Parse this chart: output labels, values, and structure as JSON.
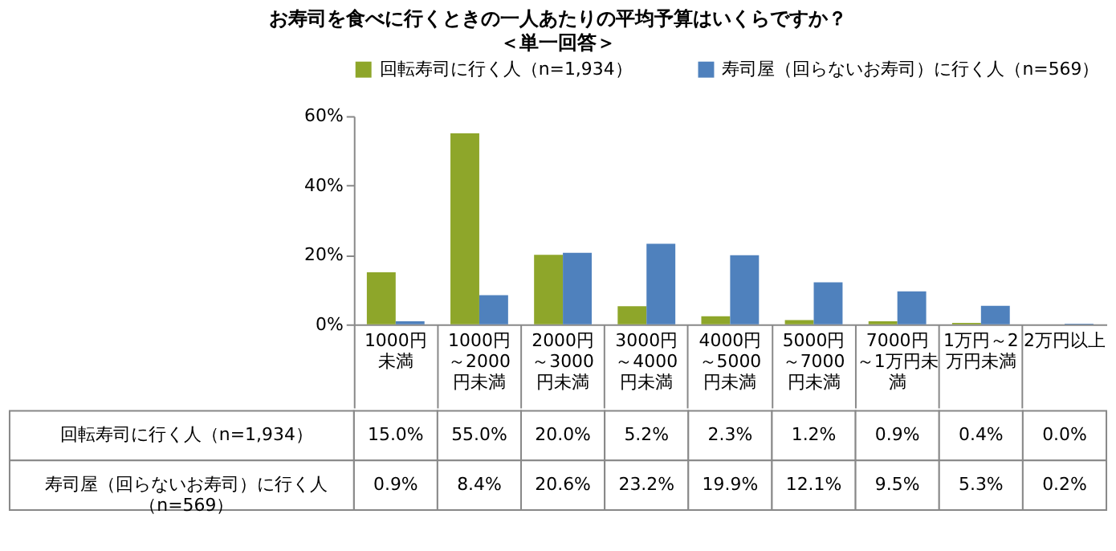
{
  "chart_data": {
    "type": "bar",
    "title": "お寿司を食べに行くときの一人あたりの平均予算はいくらですか？",
    "subtitle": "＜単一回答＞",
    "categories": [
      "1000円未満",
      "1000円～2000円未満",
      "2000円～3000円未満",
      "3000円～4000円未満",
      "4000円～5000円未満",
      "5000円～7000円未満",
      "7000円～1万円未満",
      "1万円～2万円未満",
      "2万円以上"
    ],
    "series": [
      {
        "name": "回転寿司に行く人（n=1,934）",
        "color": "#8ea62a",
        "values": [
          15.0,
          55.0,
          20.0,
          5.2,
          2.3,
          1.2,
          0.9,
          0.4,
          0.0
        ],
        "value_labels": [
          "15.0%",
          "55.0%",
          "20.0%",
          "5.2%",
          "2.3%",
          "1.2%",
          "0.9%",
          "0.4%",
          "0.0%"
        ]
      },
      {
        "name": "寿司屋（回らないお寿司）に行く人（n=569）",
        "color": "#4f81bd",
        "values": [
          0.9,
          8.4,
          20.6,
          23.2,
          19.9,
          12.1,
          9.5,
          5.3,
          0.2
        ],
        "value_labels": [
          "0.9%",
          "8.4%",
          "20.6%",
          "23.2%",
          "19.9%",
          "12.1%",
          "9.5%",
          "5.3%",
          "0.2%"
        ]
      }
    ],
    "ylim": [
      0,
      60
    ],
    "yticks": [
      {
        "value": 0,
        "label": "0%"
      },
      {
        "value": 20,
        "label": "20%"
      },
      {
        "value": 40,
        "label": "40%"
      },
      {
        "value": 60,
        "label": "60%"
      }
    ],
    "grid": false,
    "legend": "top"
  }
}
